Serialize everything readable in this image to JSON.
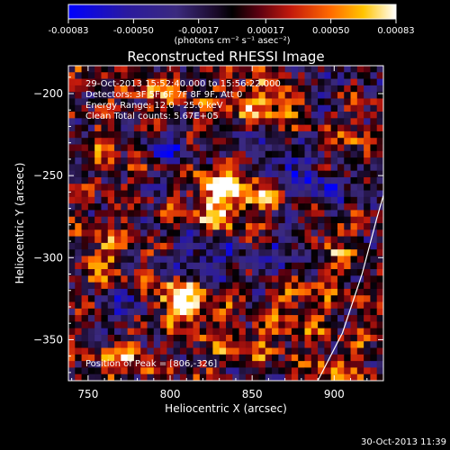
{
  "chart_data": {
    "type": "heatmap",
    "title": "Reconstructed RHESSI Image",
    "xlabel": "Heliocentric X (arcsec)",
    "ylabel": "Heliocentric Y (arcsec)",
    "xlim": [
      738,
      930
    ],
    "ylim": [
      -375,
      -183
    ],
    "x_ticks": [
      750,
      800,
      850,
      900
    ],
    "y_ticks": [
      -350,
      -300,
      -250,
      -200
    ],
    "colorbar": {
      "range": [
        -0.00083,
        0.00083
      ],
      "ticks": [
        "-0.00083",
        "-0.00050",
        "-0.00017",
        "0.00017",
        "0.00050",
        "0.00083"
      ],
      "tick_values": [
        -0.00083,
        -0.0005,
        -0.00017,
        0.00017,
        0.0005,
        0.00083
      ],
      "label": "(photons cm⁻² s⁻¹ asec⁻²)"
    },
    "annotations": [
      "29-Oct-2013 15:52:40.000 to 15:56:22.000",
      "Detectors: 3F 5F 6F 7F 8F 9F, Att 0",
      "Energy Range: 12.0 - 25.0 keV",
      "Clean    Total counts: 5.67E+05"
    ],
    "peak_label": "Position of Peak = [806,-326]",
    "peak": [
      806,
      -326
    ],
    "sources": [
      {
        "x": 806,
        "y": -326,
        "value": 0.00083,
        "sx": 12,
        "sy": 10
      },
      {
        "x": 828,
        "y": -266,
        "value": 0.00062,
        "sx": 10,
        "sy": 14
      },
      {
        "x": 848,
        "y": -258,
        "value": 0.0005,
        "sx": 14,
        "sy": 12
      },
      {
        "x": 858,
        "y": -205,
        "value": 0.00055,
        "sx": 18,
        "sy": 9
      },
      {
        "x": 790,
        "y": -200,
        "value": 0.0004,
        "sx": 14,
        "sy": 8
      },
      {
        "x": 760,
        "y": -300,
        "value": 0.00035,
        "sx": 10,
        "sy": 14
      },
      {
        "x": 772,
        "y": -362,
        "value": 0.00042,
        "sx": 12,
        "sy": 10
      },
      {
        "x": 842,
        "y": -352,
        "value": 0.00038,
        "sx": 16,
        "sy": 9
      },
      {
        "x": 880,
        "y": -330,
        "value": 0.0004,
        "sx": 12,
        "sy": 14
      },
      {
        "x": 905,
        "y": -368,
        "value": 0.00038,
        "sx": 14,
        "sy": 9
      },
      {
        "x": 900,
        "y": -295,
        "value": 0.0003,
        "sx": 10,
        "sy": 12
      },
      {
        "x": 910,
        "y": -225,
        "value": 0.0003,
        "sx": 10,
        "sy": 10
      },
      {
        "x": 758,
        "y": -235,
        "value": 0.00022,
        "sx": 10,
        "sy": 10
      },
      {
        "x": 800,
        "y": -232,
        "value": -0.00045,
        "sx": 10,
        "sy": 8
      },
      {
        "x": 870,
        "y": -245,
        "value": -0.00052,
        "sx": 12,
        "sy": 10
      },
      {
        "x": 820,
        "y": -300,
        "value": -0.00048,
        "sx": 16,
        "sy": 10
      },
      {
        "x": 770,
        "y": -330,
        "value": -0.0004,
        "sx": 12,
        "sy": 10
      },
      {
        "x": 870,
        "y": -300,
        "value": -0.0004,
        "sx": 12,
        "sy": 10
      },
      {
        "x": 890,
        "y": -200,
        "value": -0.00035,
        "sx": 10,
        "sy": 8
      },
      {
        "x": 895,
        "y": -258,
        "value": -0.0004,
        "sx": 10,
        "sy": 10
      },
      {
        "x": 845,
        "y": -230,
        "value": -0.0003,
        "sx": 10,
        "sy": 8
      }
    ],
    "limb_curve": [
      [
        890,
        -375
      ],
      [
        905,
        -346
      ],
      [
        917,
        -310
      ],
      [
        926,
        -276
      ],
      [
        930,
        -262
      ]
    ],
    "grid": false,
    "legend": "none",
    "timestamp": "30-Oct-2013 11:39"
  }
}
